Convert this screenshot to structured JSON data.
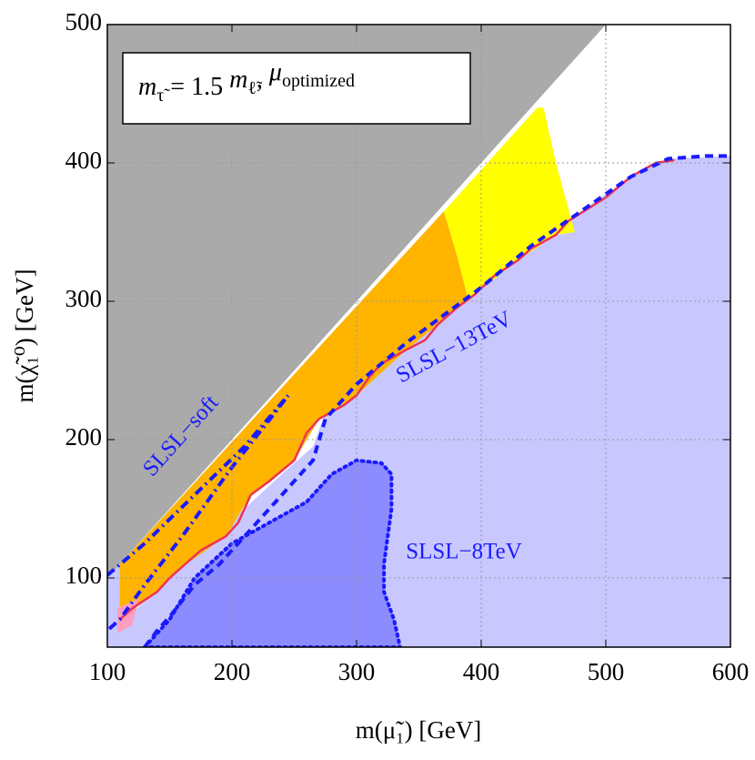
{
  "chart_data": {
    "type": "region",
    "xlabel": "m(μ̃₁) [GeV]",
    "ylabel": "m(χ̃₁⁰) [GeV]",
    "box_label": [
      "m",
      "τ̃",
      " = 1.5 ",
      "m",
      "ℓ̃",
      ", ",
      "μ",
      "optimized"
    ],
    "xlim": [
      100,
      600
    ],
    "ylim": [
      50,
      500
    ],
    "xticks": [
      100,
      200,
      300,
      400,
      500,
      600
    ],
    "yticks": [
      100,
      200,
      300,
      400,
      500
    ],
    "grid": true,
    "regions": [
      {
        "color": "#c8c8ff",
        "x": [
          100,
          600,
          600,
          550,
          520,
          480,
          440,
          400,
          370,
          340,
          300,
          275,
          265,
          240,
          210,
          190,
          170,
          150,
          140,
          112,
          112,
          100
        ],
        "y": [
          50,
          50,
          405,
          403,
          390,
          365,
          340,
          310,
          290,
          270,
          240,
          220,
          195,
          175,
          150,
          135,
          120,
          100,
          90,
          70,
          112,
          100
        ]
      },
      {
        "color": "#aaaaaa",
        "x": [
          100,
          500,
          100
        ],
        "y": [
          100,
          500,
          500
        ]
      },
      {
        "color": "#ffb400",
        "x": [
          110,
          370,
          380,
          390,
          380,
          365,
          340,
          300,
          270,
          250,
          215,
          195,
          160,
          140,
          110
        ],
        "y": [
          110,
          365,
          335,
          300,
          295,
          283,
          265,
          232,
          215,
          185,
          160,
          130,
          108,
          90,
          70
        ]
      },
      {
        "color": "#ffff00",
        "x": [
          370,
          445,
          450,
          460,
          475,
          460,
          430,
          395,
          390,
          380
        ],
        "y": [
          365,
          440,
          440,
          400,
          350,
          348,
          330,
          305,
          300,
          335
        ]
      },
      {
        "color": "#ff9ec0",
        "x": [
          108,
          108,
          125,
          120
        ],
        "y": [
          60,
          78,
          85,
          66
        ]
      },
      {
        "color": "#8c8cff",
        "border": "#1a1aff",
        "x": [
          130,
          150,
          170,
          200,
          230,
          260,
          280,
          300,
          320,
          328,
          328,
          322,
          322,
          330,
          335
        ],
        "y": [
          50,
          70,
          100,
          125,
          140,
          155,
          175,
          185,
          183,
          175,
          150,
          110,
          90,
          70,
          50
        ]
      }
    ],
    "lines": [
      {
        "color": "#ee3355",
        "style": "solid",
        "x": [
          110,
          120,
          140,
          150,
          160,
          175,
          195,
          205,
          215,
          230,
          250,
          260,
          270,
          290,
          300,
          310,
          320,
          330,
          340,
          355,
          365,
          380,
          395,
          410,
          430,
          440,
          460,
          470,
          500,
          520,
          540,
          555
        ],
        "y": [
          70,
          78,
          90,
          100,
          108,
          120,
          130,
          140,
          160,
          170,
          185,
          205,
          215,
          225,
          232,
          245,
          255,
          260,
          265,
          272,
          283,
          295,
          305,
          318,
          330,
          338,
          348,
          358,
          375,
          390,
          400,
          402
        ]
      },
      {
        "color": "#1a1aff",
        "style": "dashed",
        "x": [
          130,
          140,
          150,
          170,
          190,
          210,
          240,
          265,
          275,
          300,
          340,
          370,
          400,
          440,
          480,
          520,
          550,
          580,
          600
        ],
        "y": [
          50,
          62,
          72,
          95,
          110,
          130,
          160,
          185,
          215,
          240,
          270,
          290,
          310,
          340,
          365,
          390,
          403,
          405,
          405
        ]
      },
      {
        "color": "#1a1aff",
        "style": "dashdot",
        "x": [
          100,
          130,
          170,
          210,
          245,
          235,
          200,
          160,
          130,
          110,
          100
        ],
        "y": [
          102,
          125,
          160,
          195,
          232,
          220,
          180,
          130,
          95,
          70,
          62
        ]
      }
    ],
    "annotations": [
      "SLSL−soft",
      "SLSL−13TeV",
      "SLSL−8TeV"
    ],
    "annotation_color": "#1a1aff"
  }
}
